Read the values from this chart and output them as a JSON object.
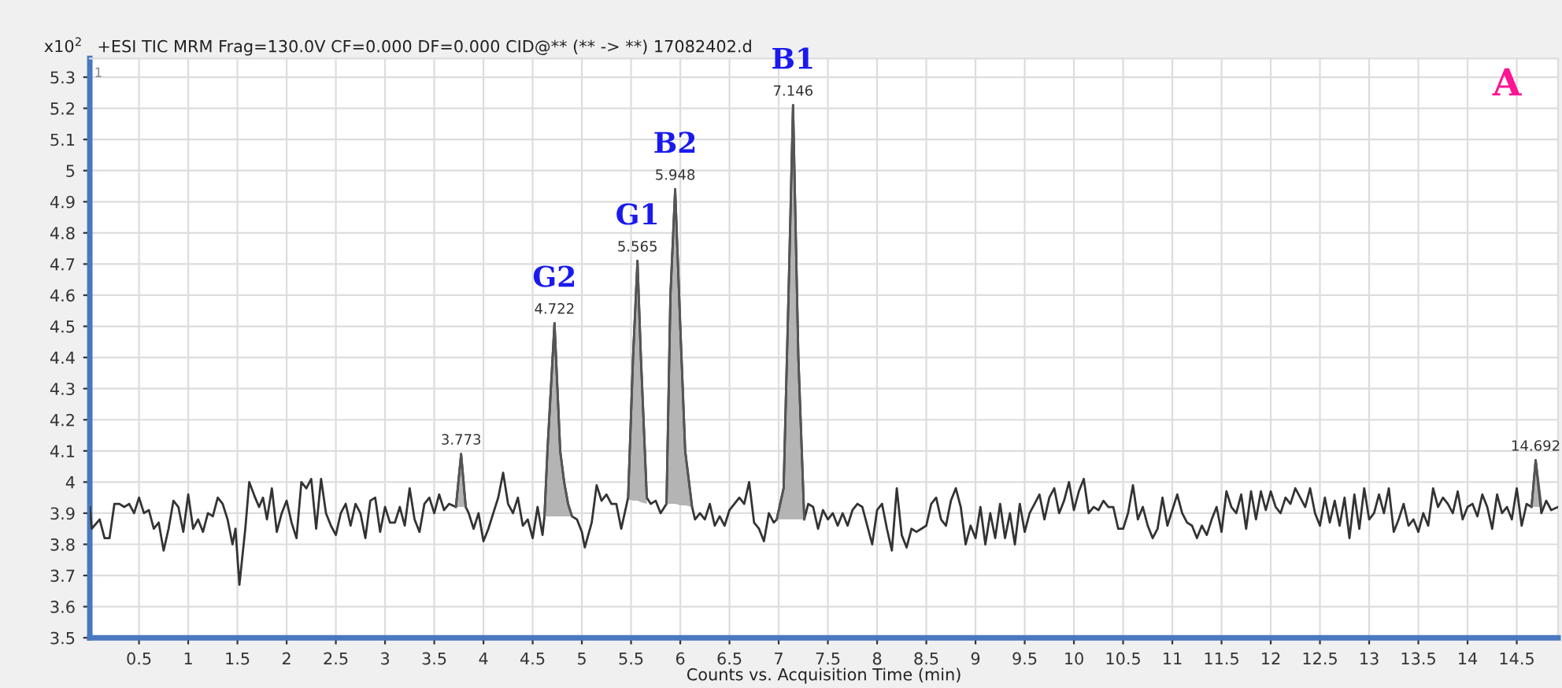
{
  "chart_data": {
    "type": "line",
    "title": "+ESI TIC MRM Frag=130.0V CF=0.000 DF=0.000 CID@** (** -> **) 17082402.d",
    "xlabel": "Counts vs. Acquisition Time (min)",
    "ylabel": "x10$^{2}$",
    "xlim": [
      0,
      14.92
    ],
    "ylim": [
      3.5,
      5.36
    ],
    "xticks": [
      0.5,
      1,
      1.5,
      2,
      2.5,
      3,
      3.5,
      4,
      4.5,
      5,
      5.5,
      6,
      6.5,
      7,
      7.5,
      8,
      8.5,
      9,
      9.5,
      10,
      10.5,
      11,
      11.5,
      12,
      12.5,
      13,
      13.5,
      14,
      14.5
    ],
    "yticks": [
      3.5,
      3.6,
      3.7,
      3.8,
      3.9,
      4,
      4.1,
      4.2,
      4.3,
      4.4,
      4.5,
      4.6,
      4.7,
      4.8,
      4.9,
      5,
      5.1,
      5.2,
      5.3
    ],
    "grid": true,
    "series": [
      {
        "color": "#333333",
        "x": [
          0.0,
          0.02,
          0.1,
          0.15,
          0.2,
          0.25,
          0.3,
          0.35,
          0.4,
          0.45,
          0.5,
          0.55,
          0.6,
          0.65,
          0.7,
          0.75,
          0.8,
          0.85,
          0.9,
          0.95,
          1.0,
          1.05,
          1.1,
          1.15,
          1.2,
          1.25,
          1.3,
          1.35,
          1.4,
          1.45,
          1.48,
          1.52,
          1.58,
          1.62,
          1.68,
          1.72,
          1.76,
          1.8,
          1.85,
          1.9,
          1.95,
          2.0,
          2.05,
          2.1,
          2.15,
          2.2,
          2.25,
          2.3,
          2.35,
          2.4,
          2.45,
          2.5,
          2.55,
          2.6,
          2.65,
          2.7,
          2.75,
          2.8,
          2.85,
          2.9,
          2.95,
          3.0,
          3.05,
          3.1,
          3.15,
          3.2,
          3.25,
          3.3,
          3.35,
          3.4,
          3.45,
          3.5,
          3.55,
          3.6,
          3.65,
          3.72,
          3.773,
          3.82,
          3.85,
          3.9,
          3.95,
          4.0,
          4.05,
          4.1,
          4.15,
          4.2,
          4.25,
          4.3,
          4.35,
          4.4,
          4.45,
          4.5,
          4.55,
          4.6,
          4.62,
          4.65,
          4.722,
          4.78,
          4.82,
          4.86,
          4.9,
          4.95,
          5.0,
          5.03,
          5.1,
          5.15,
          5.2,
          5.25,
          5.3,
          5.35,
          5.4,
          5.47,
          5.52,
          5.565,
          5.6,
          5.66,
          5.7,
          5.75,
          5.8,
          5.86,
          5.9,
          5.948,
          6.0,
          6.05,
          6.12,
          6.15,
          6.2,
          6.25,
          6.3,
          6.35,
          6.4,
          6.45,
          6.5,
          6.55,
          6.6,
          6.65,
          6.7,
          6.75,
          6.8,
          6.85,
          6.9,
          6.95,
          6.98,
          7.05,
          7.1,
          7.146,
          7.2,
          7.26,
          7.3,
          7.35,
          7.4,
          7.45,
          7.5,
          7.55,
          7.6,
          7.65,
          7.7,
          7.75,
          7.8,
          7.85,
          7.9,
          7.95,
          8.0,
          8.05,
          8.1,
          8.15,
          8.2,
          8.25,
          8.3,
          8.35,
          8.4,
          8.45,
          8.5,
          8.55,
          8.6,
          8.65,
          8.7,
          8.75,
          8.8,
          8.85,
          8.9,
          8.95,
          9.0,
          9.05,
          9.1,
          9.15,
          9.2,
          9.25,
          9.3,
          9.35,
          9.4,
          9.45,
          9.5,
          9.55,
          9.6,
          9.65,
          9.7,
          9.75,
          9.8,
          9.85,
          9.9,
          9.95,
          10.0,
          10.05,
          10.1,
          10.15,
          10.2,
          10.25,
          10.3,
          10.35,
          10.4,
          10.45,
          10.5,
          10.55,
          10.6,
          10.65,
          10.7,
          10.75,
          10.8,
          10.85,
          10.9,
          10.95,
          11.0,
          11.05,
          11.1,
          11.15,
          11.2,
          11.25,
          11.3,
          11.35,
          11.4,
          11.45,
          11.5,
          11.55,
          11.6,
          11.65,
          11.7,
          11.75,
          11.8,
          11.85,
          11.9,
          11.95,
          12.0,
          12.05,
          12.1,
          12.15,
          12.2,
          12.25,
          12.3,
          12.35,
          12.4,
          12.45,
          12.5,
          12.55,
          12.6,
          12.65,
          12.7,
          12.75,
          12.8,
          12.85,
          12.9,
          12.95,
          13.0,
          13.05,
          13.1,
          13.15,
          13.2,
          13.25,
          13.3,
          13.35,
          13.4,
          13.45,
          13.5,
          13.55,
          13.6,
          13.65,
          13.7,
          13.75,
          13.8,
          13.85,
          13.9,
          13.95,
          14.0,
          14.05,
          14.1,
          14.15,
          14.2,
          14.25,
          14.3,
          14.35,
          14.4,
          14.45,
          14.5,
          14.55,
          14.6,
          14.65,
          14.692,
          14.75,
          14.8,
          14.85,
          14.92
        ],
        "values": [
          3.92,
          3.85,
          3.88,
          3.82,
          3.82,
          3.93,
          3.93,
          3.92,
          3.93,
          3.9,
          3.95,
          3.9,
          3.91,
          3.85,
          3.87,
          3.78,
          3.85,
          3.94,
          3.92,
          3.84,
          3.96,
          3.85,
          3.88,
          3.84,
          3.9,
          3.89,
          3.95,
          3.93,
          3.88,
          3.8,
          3.85,
          3.67,
          3.85,
          4.0,
          3.95,
          3.92,
          3.95,
          3.88,
          3.98,
          3.84,
          3.9,
          3.94,
          3.87,
          3.82,
          4.0,
          3.98,
          4.01,
          3.85,
          4.01,
          3.9,
          3.86,
          3.83,
          3.9,
          3.93,
          3.86,
          3.93,
          3.9,
          3.82,
          3.94,
          3.95,
          3.84,
          3.92,
          3.87,
          3.87,
          3.92,
          3.86,
          3.98,
          3.88,
          3.84,
          3.93,
          3.95,
          3.9,
          3.96,
          3.91,
          3.93,
          3.92,
          4.09,
          3.92,
          3.9,
          3.85,
          3.9,
          3.81,
          3.85,
          3.9,
          3.95,
          4.03,
          3.93,
          3.9,
          3.95,
          3.86,
          3.88,
          3.82,
          3.92,
          3.83,
          3.89,
          4.1,
          4.51,
          4.1,
          4.0,
          3.93,
          3.89,
          3.88,
          3.84,
          3.79,
          3.87,
          3.99,
          3.94,
          3.96,
          3.93,
          3.93,
          3.85,
          3.95,
          4.4,
          4.71,
          4.4,
          3.95,
          3.93,
          3.94,
          3.9,
          3.93,
          4.6,
          4.94,
          4.5,
          4.1,
          3.92,
          3.88,
          3.9,
          3.88,
          3.93,
          3.86,
          3.89,
          3.86,
          3.91,
          3.93,
          3.95,
          3.93,
          4.0,
          3.87,
          3.85,
          3.81,
          3.9,
          3.87,
          3.88,
          3.98,
          4.6,
          5.21,
          4.4,
          3.88,
          3.93,
          3.92,
          3.85,
          3.91,
          3.88,
          3.9,
          3.86,
          3.9,
          3.86,
          3.91,
          3.93,
          3.92,
          3.86,
          3.8,
          3.91,
          3.93,
          3.85,
          3.78,
          3.98,
          3.83,
          3.79,
          3.85,
          3.84,
          3.85,
          3.86,
          3.93,
          3.95,
          3.88,
          3.86,
          3.94,
          3.98,
          3.92,
          3.8,
          3.86,
          3.82,
          3.92,
          3.8,
          3.9,
          3.82,
          3.93,
          3.82,
          3.9,
          3.8,
          3.93,
          3.84,
          3.9,
          3.93,
          3.96,
          3.88,
          3.95,
          3.98,
          3.9,
          3.94,
          4.0,
          3.91,
          3.97,
          4.01,
          3.9,
          3.92,
          3.91,
          3.94,
          3.92,
          3.92,
          3.85,
          3.85,
          3.9,
          3.99,
          3.88,
          3.92,
          3.86,
          3.82,
          3.85,
          3.95,
          3.86,
          3.91,
          3.96,
          3.9,
          3.87,
          3.86,
          3.82,
          3.86,
          3.83,
          3.88,
          3.92,
          3.84,
          3.97,
          3.92,
          3.9,
          3.96,
          3.85,
          3.97,
          3.88,
          3.97,
          3.91,
          3.97,
          3.92,
          3.9,
          3.95,
          3.93,
          3.98,
          3.95,
          3.92,
          3.98,
          3.9,
          3.86,
          3.95,
          3.87,
          3.94,
          3.86,
          3.95,
          3.82,
          3.96,
          3.85,
          3.98,
          3.88,
          3.9,
          3.96,
          3.9,
          3.98,
          3.84,
          3.88,
          3.93,
          3.86,
          3.88,
          3.84,
          3.9,
          3.86,
          3.98,
          3.92,
          3.95,
          3.93,
          3.9,
          3.97,
          3.88,
          3.92,
          3.93,
          3.89,
          3.96,
          3.92,
          3.85,
          3.96,
          3.9,
          3.92,
          3.88,
          3.98,
          3.86,
          3.93,
          3.92,
          4.07,
          3.9,
          3.94,
          3.91,
          3.92
        ]
      },
      {
        "type": "line",
        "color": "#555555",
        "x": [
          3.72,
          3.773,
          3.82
        ],
        "values": [
          3.92,
          4.09,
          3.92
        ],
        "upper": [
          3.92,
          4.09,
          3.92
        ],
        "lower": [
          3.92,
          3.92,
          3.92
        ]
      },
      {
        "type": "line",
        "color": "#555555",
        "x": [
          4.62,
          4.65,
          4.722,
          4.78,
          4.82,
          4.86,
          4.9
        ],
        "values": [
          3.89,
          4.1,
          4.51,
          4.1,
          4.0,
          3.93,
          3.89
        ],
        "upper": [
          3.89,
          4.1,
          4.51,
          4.1,
          4.0,
          3.93,
          3.89
        ],
        "lower": [
          3.89,
          3.89,
          3.89,
          3.89,
          3.89,
          3.89,
          3.89
        ]
      },
      {
        "type": "line",
        "color": "#555555",
        "x": [
          5.47,
          5.52,
          5.565,
          5.6,
          5.66
        ],
        "values": [
          3.95,
          4.4,
          4.71,
          4.4,
          3.95
        ],
        "upper": [
          3.95,
          4.4,
          4.71,
          4.4,
          3.95
        ],
        "lower": [
          3.945,
          3.94,
          3.94,
          3.935,
          3.93
        ]
      },
      {
        "type": "line",
        "color": "#555555",
        "x": [
          5.86,
          5.9,
          5.948,
          6.0,
          6.05,
          6.12
        ],
        "values": [
          3.93,
          4.6,
          4.94,
          4.5,
          4.1,
          3.92
        ],
        "upper": [
          3.93,
          4.6,
          4.94,
          4.5,
          4.1,
          3.92
        ],
        "lower": [
          3.93,
          3.93,
          3.93,
          3.925,
          3.925,
          3.92
        ]
      },
      {
        "type": "line",
        "color": "#555555",
        "x": [
          6.98,
          7.05,
          7.1,
          7.146,
          7.2,
          7.26
        ],
        "values": [
          3.88,
          3.98,
          4.6,
          5.21,
          4.4,
          3.88
        ],
        "upper": [
          3.88,
          3.98,
          4.6,
          5.21,
          4.4,
          3.88
        ],
        "lower": [
          3.88,
          3.88,
          3.88,
          3.88,
          3.88,
          3.88
        ]
      },
      {
        "type": "line",
        "color": "#555555",
        "x": [
          14.65,
          14.692,
          14.75
        ],
        "values": [
          3.92,
          4.07,
          3.92
        ],
        "upper": [
          3.92,
          4.07,
          3.92
        ],
        "lower": [
          3.92,
          3.92,
          3.92
        ]
      }
    ],
    "annotations": [
      "1",
      "A",
      {
        "text": "3.773",
        "x": 3.773,
        "y": 4.09
      },
      {
        "text": "4.722",
        "x": 4.722,
        "y": 4.51
      },
      {
        "text": "G2",
        "x": 4.722,
        "y": 4.51
      },
      {
        "text": "5.565",
        "x": 5.565,
        "y": 4.71
      },
      {
        "text": "G1",
        "x": 5.565,
        "y": 4.71
      },
      {
        "text": "5.948",
        "x": 5.948,
        "y": 4.94
      },
      {
        "text": "B2",
        "x": 5.948,
        "y": 4.94
      },
      {
        "text": "7.146",
        "x": 7.146,
        "y": 5.21
      },
      {
        "text": "B1",
        "x": 7.146,
        "y": 5.21
      },
      {
        "text": "14.692",
        "x": 14.692,
        "y": 4.07
      }
    ]
  }
}
